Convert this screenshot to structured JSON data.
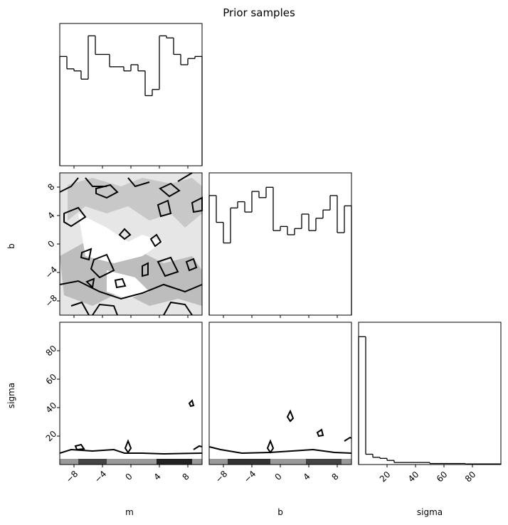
{
  "chart_data": {
    "type": "corner",
    "title": "Prior samples",
    "variables": [
      {
        "label": "m",
        "lim": [
          -10,
          10
        ],
        "ticks": [
          {
            "value": -8,
            "label": "−8"
          },
          {
            "value": -4,
            "label": "−4"
          },
          0,
          4,
          8
        ]
      },
      {
        "label": "b",
        "lim": [
          -10,
          10
        ],
        "ticks": [
          {
            "value": -8,
            "label": "−8"
          },
          {
            "value": -4,
            "label": "−4"
          },
          0,
          4,
          8
        ]
      },
      {
        "label": "sigma",
        "lim": [
          0,
          100
        ],
        "ticks": [
          20,
          40,
          60,
          80
        ]
      }
    ],
    "histograms": [
      {
        "bins": [
          -10,
          -9,
          -8,
          -7,
          -6,
          -5,
          -4,
          -3,
          -2,
          -1,
          0,
          1,
          2,
          3,
          4,
          5,
          6,
          7,
          8,
          9,
          10
        ],
        "values": [
          53,
          47,
          46,
          42,
          63,
          54,
          54,
          48,
          48,
          46,
          49,
          46,
          34,
          37,
          63,
          62,
          54,
          49,
          52,
          53
        ],
        "ylim": [
          0,
          69
        ]
      },
      {
        "bins": [
          -10,
          -9,
          -8,
          -7,
          -6,
          -5,
          -4,
          -3,
          -2,
          -1,
          0,
          1,
          2,
          3,
          4,
          5,
          6,
          7,
          8,
          9,
          10
        ],
        "values": [
          58,
          45,
          35,
          52,
          55,
          50,
          60,
          57,
          62,
          41,
          43,
          39,
          42,
          49,
          41,
          47,
          51,
          58,
          40,
          53
        ],
        "ylim": [
          0,
          69
        ]
      },
      {
        "bins": [
          0,
          5,
          10,
          15,
          20,
          25,
          30,
          35,
          40,
          45,
          50,
          55,
          60,
          65,
          70,
          75,
          80,
          85,
          90,
          95,
          100
        ],
        "values": [
          62,
          5,
          3.5,
          3,
          2,
          1,
          1,
          1,
          1,
          1,
          0.5,
          0.5,
          0.5,
          0.5,
          0.5,
          0.3,
          0.3,
          0.3,
          0.3,
          0.3
        ],
        "ylim": [
          0,
          69
        ]
      }
    ]
  }
}
